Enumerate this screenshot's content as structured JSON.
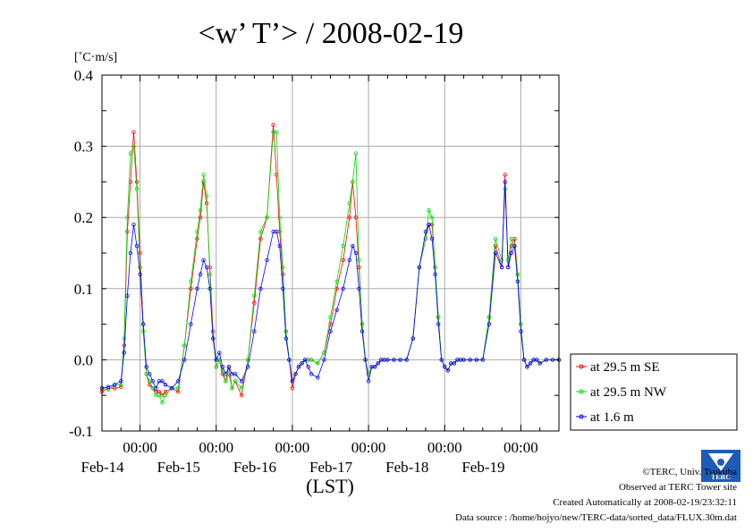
{
  "chart_data": {
    "type": "line",
    "title": "<w’ T’> / 2008-02-19",
    "ylabel": "[˚C·m/s]",
    "xlabel": "(LST)",
    "ylim": [
      -0.1,
      0.4
    ],
    "yticks": [
      "-0.1",
      "0.0",
      "0.1",
      "0.2",
      "0.3",
      "0.4"
    ],
    "ytick_values": [
      -0.1,
      0.0,
      0.1,
      0.2,
      0.3,
      0.4
    ],
    "xlim": [
      0,
      144
    ],
    "xtick_positions": [
      12,
      36,
      60,
      84,
      108,
      132
    ],
    "xtick_labels": [
      "00:00",
      "00:00",
      "00:00",
      "00:00",
      "00:00",
      "00:00"
    ],
    "day_labels": [
      "Feb-14",
      "Feb-15",
      "Feb-16",
      "Feb-17",
      "Feb-18",
      "Feb-19"
    ],
    "day_label_positions": [
      12,
      36,
      60,
      84,
      108,
      132
    ],
    "grid": true,
    "legend_position": "right",
    "x_hours": [
      0,
      2,
      4,
      6,
      7,
      8,
      9,
      10,
      11,
      12,
      13,
      14,
      15,
      16,
      17,
      18,
      19,
      20,
      22,
      24,
      26,
      28,
      30,
      31,
      32,
      33,
      34,
      35,
      36,
      37,
      38,
      39,
      40,
      41,
      42,
      44,
      46,
      48,
      50,
      52,
      54,
      55,
      56,
      57,
      58,
      59,
      60,
      61,
      62,
      63,
      64,
      65,
      66,
      68,
      70,
      72,
      74,
      76,
      78,
      79,
      80,
      81,
      82,
      83,
      84,
      85,
      86,
      87,
      88,
      89,
      90,
      92,
      94,
      96,
      98,
      100,
      102,
      103,
      104,
      105,
      106,
      107,
      108,
      109,
      110,
      111,
      112,
      113,
      114,
      116,
      118,
      120,
      122,
      124,
      126,
      127,
      128,
      129,
      130,
      131,
      132,
      133,
      134,
      135,
      136,
      137,
      138,
      140,
      142,
      144
    ],
    "series": [
      {
        "name": "at 29.5 m SE",
        "color": "#ff0000",
        "values": [
          -0.045,
          -0.04,
          -0.04,
          -0.038,
          0.02,
          0.18,
          0.25,
          0.32,
          0.25,
          0.15,
          0.05,
          -0.02,
          -0.035,
          -0.04,
          -0.045,
          -0.045,
          -0.05,
          -0.045,
          -0.04,
          -0.045,
          0.02,
          0.1,
          0.17,
          0.2,
          0.25,
          0.22,
          0.13,
          0.04,
          -0.01,
          0.0,
          -0.02,
          -0.03,
          -0.01,
          -0.04,
          -0.03,
          -0.05,
          0.0,
          0.08,
          0.17,
          0.2,
          0.33,
          0.26,
          0.18,
          0.12,
          0.04,
          0.0,
          -0.04,
          -0.02,
          -0.01,
          -0.005,
          0.0,
          0.0,
          0.0,
          -0.005,
          0.01,
          0.05,
          0.1,
          0.14,
          0.2,
          0.25,
          0.2,
          0.13,
          0.05,
          0.0,
          -0.02,
          -0.01,
          -0.01,
          -0.005,
          0.0,
          0.0,
          0.0,
          0.0,
          0.0,
          0.0,
          0.03,
          0.13,
          0.17,
          0.19,
          0.19,
          0.13,
          0.06,
          0.0,
          -0.01,
          -0.015,
          -0.005,
          -0.005,
          0.0,
          0.0,
          0.0,
          0.0,
          0.0,
          0.0,
          0.06,
          0.16,
          0.13,
          0.26,
          0.13,
          0.16,
          0.17,
          0.12,
          0.05,
          0.0,
          -0.01,
          -0.005,
          0.0,
          0.0,
          -0.005,
          0.0,
          0.0,
          0.0
        ]
      },
      {
        "name": "at 29.5 m NW",
        "color": "#00dd00",
        "values": [
          -0.04,
          -0.042,
          -0.035,
          -0.035,
          0.03,
          0.2,
          0.29,
          0.3,
          0.24,
          0.13,
          0.04,
          -0.02,
          -0.03,
          -0.04,
          -0.05,
          -0.05,
          -0.06,
          -0.05,
          -0.04,
          -0.04,
          0.02,
          0.11,
          0.18,
          0.21,
          0.26,
          0.23,
          0.12,
          0.03,
          -0.01,
          0.0,
          -0.015,
          -0.03,
          -0.02,
          -0.04,
          -0.03,
          -0.04,
          0.0,
          0.09,
          0.18,
          0.2,
          0.32,
          0.32,
          0.2,
          0.13,
          0.04,
          0.0,
          -0.03,
          -0.02,
          -0.01,
          -0.005,
          0.0,
          0.0,
          0.0,
          -0.005,
          0.01,
          0.06,
          0.11,
          0.16,
          0.22,
          0.25,
          0.29,
          0.14,
          0.05,
          0.0,
          -0.02,
          -0.01,
          -0.01,
          -0.005,
          0.0,
          0.0,
          0.0,
          0.0,
          0.0,
          0.0,
          0.03,
          0.13,
          0.17,
          0.21,
          0.2,
          0.13,
          0.06,
          0.0,
          -0.01,
          -0.015,
          -0.005,
          -0.005,
          0.0,
          0.0,
          0.0,
          0.0,
          0.0,
          0.0,
          0.06,
          0.17,
          0.14,
          0.24,
          0.14,
          0.17,
          0.16,
          0.12,
          0.05,
          0.0,
          -0.01,
          -0.005,
          0.0,
          0.0,
          -0.005,
          0.0,
          0.0,
          0.0
        ]
      },
      {
        "name": "at 1.6 m",
        "color": "#0000ff",
        "values": [
          -0.04,
          -0.038,
          -0.035,
          -0.03,
          0.01,
          0.09,
          0.15,
          0.19,
          0.16,
          0.12,
          0.05,
          -0.01,
          -0.02,
          -0.03,
          -0.04,
          -0.03,
          -0.03,
          -0.035,
          -0.04,
          -0.03,
          0.0,
          0.05,
          0.1,
          0.12,
          0.14,
          0.13,
          0.1,
          0.03,
          0.0,
          0.01,
          -0.01,
          -0.02,
          -0.01,
          -0.02,
          -0.02,
          -0.03,
          -0.01,
          0.04,
          0.1,
          0.14,
          0.18,
          0.18,
          0.16,
          0.1,
          0.03,
          0.0,
          -0.03,
          -0.02,
          -0.01,
          -0.005,
          0.0,
          -0.01,
          -0.02,
          -0.025,
          0.0,
          0.04,
          0.07,
          0.1,
          0.14,
          0.16,
          0.15,
          0.1,
          0.04,
          0.0,
          -0.03,
          -0.01,
          -0.01,
          -0.005,
          0.0,
          0.0,
          0.0,
          0.0,
          0.0,
          0.0,
          0.03,
          0.13,
          0.18,
          0.19,
          0.17,
          0.12,
          0.05,
          0.0,
          -0.01,
          -0.015,
          -0.005,
          -0.005,
          0.0,
          0.0,
          0.0,
          0.0,
          0.0,
          0.0,
          0.05,
          0.15,
          0.13,
          0.25,
          0.13,
          0.15,
          0.16,
          0.11,
          0.04,
          0.0,
          -0.01,
          -0.005,
          0.0,
          0.0,
          -0.005,
          0.0,
          0.0,
          0.0
        ]
      }
    ]
  },
  "logo_text": "TERC",
  "footer": {
    "copyright": "©TERC, Univ. Tsukuba",
    "observed": "Observed at TERC Tower site",
    "created": "Created Automatically at 2008-02-19/23:32:11",
    "source": "Data source : /home/hojyo/new/TERC-data/sorted_data/FLUX.30m.dat"
  }
}
